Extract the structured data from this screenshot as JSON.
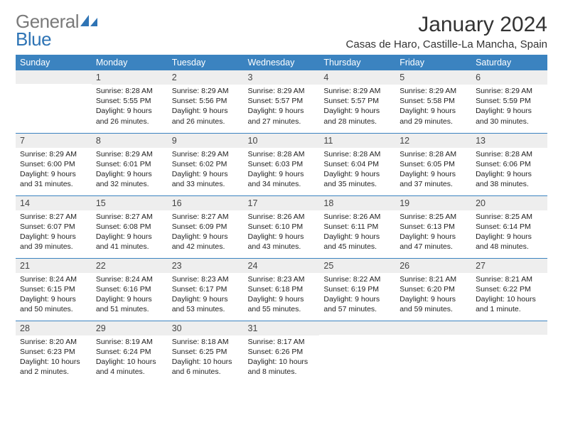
{
  "brand": {
    "grey": "General",
    "blue": "Blue"
  },
  "title": "January 2024",
  "location": "Casas de Haro, Castille-La Mancha, Spain",
  "colors": {
    "header_bg": "#3b83c0",
    "header_fg": "#ffffff",
    "daynum_bg": "#eeeeee",
    "row_border": "#3b83c0",
    "logo_grey": "#7a7a7a",
    "logo_blue": "#2f74b5",
    "text": "#333333",
    "background": "#ffffff"
  },
  "typography": {
    "month_title_fontsize": 30,
    "location_fontsize": 15,
    "dayheader_fontsize": 12.5,
    "daynum_fontsize": 12.5,
    "cell_fontsize": 10.5,
    "logo_fontsize": 26
  },
  "day_headers": [
    "Sunday",
    "Monday",
    "Tuesday",
    "Wednesday",
    "Thursday",
    "Friday",
    "Saturday"
  ],
  "weeks": [
    [
      {
        "n": "",
        "sr": "",
        "ss": "",
        "dl": ""
      },
      {
        "n": "1",
        "sr": "Sunrise: 8:28 AM",
        "ss": "Sunset: 5:55 PM",
        "dl": "Daylight: 9 hours and 26 minutes."
      },
      {
        "n": "2",
        "sr": "Sunrise: 8:29 AM",
        "ss": "Sunset: 5:56 PM",
        "dl": "Daylight: 9 hours and 26 minutes."
      },
      {
        "n": "3",
        "sr": "Sunrise: 8:29 AM",
        "ss": "Sunset: 5:57 PM",
        "dl": "Daylight: 9 hours and 27 minutes."
      },
      {
        "n": "4",
        "sr": "Sunrise: 8:29 AM",
        "ss": "Sunset: 5:57 PM",
        "dl": "Daylight: 9 hours and 28 minutes."
      },
      {
        "n": "5",
        "sr": "Sunrise: 8:29 AM",
        "ss": "Sunset: 5:58 PM",
        "dl": "Daylight: 9 hours and 29 minutes."
      },
      {
        "n": "6",
        "sr": "Sunrise: 8:29 AM",
        "ss": "Sunset: 5:59 PM",
        "dl": "Daylight: 9 hours and 30 minutes."
      }
    ],
    [
      {
        "n": "7",
        "sr": "Sunrise: 8:29 AM",
        "ss": "Sunset: 6:00 PM",
        "dl": "Daylight: 9 hours and 31 minutes."
      },
      {
        "n": "8",
        "sr": "Sunrise: 8:29 AM",
        "ss": "Sunset: 6:01 PM",
        "dl": "Daylight: 9 hours and 32 minutes."
      },
      {
        "n": "9",
        "sr": "Sunrise: 8:29 AM",
        "ss": "Sunset: 6:02 PM",
        "dl": "Daylight: 9 hours and 33 minutes."
      },
      {
        "n": "10",
        "sr": "Sunrise: 8:28 AM",
        "ss": "Sunset: 6:03 PM",
        "dl": "Daylight: 9 hours and 34 minutes."
      },
      {
        "n": "11",
        "sr": "Sunrise: 8:28 AM",
        "ss": "Sunset: 6:04 PM",
        "dl": "Daylight: 9 hours and 35 minutes."
      },
      {
        "n": "12",
        "sr": "Sunrise: 8:28 AM",
        "ss": "Sunset: 6:05 PM",
        "dl": "Daylight: 9 hours and 37 minutes."
      },
      {
        "n": "13",
        "sr": "Sunrise: 8:28 AM",
        "ss": "Sunset: 6:06 PM",
        "dl": "Daylight: 9 hours and 38 minutes."
      }
    ],
    [
      {
        "n": "14",
        "sr": "Sunrise: 8:27 AM",
        "ss": "Sunset: 6:07 PM",
        "dl": "Daylight: 9 hours and 39 minutes."
      },
      {
        "n": "15",
        "sr": "Sunrise: 8:27 AM",
        "ss": "Sunset: 6:08 PM",
        "dl": "Daylight: 9 hours and 41 minutes."
      },
      {
        "n": "16",
        "sr": "Sunrise: 8:27 AM",
        "ss": "Sunset: 6:09 PM",
        "dl": "Daylight: 9 hours and 42 minutes."
      },
      {
        "n": "17",
        "sr": "Sunrise: 8:26 AM",
        "ss": "Sunset: 6:10 PM",
        "dl": "Daylight: 9 hours and 43 minutes."
      },
      {
        "n": "18",
        "sr": "Sunrise: 8:26 AM",
        "ss": "Sunset: 6:11 PM",
        "dl": "Daylight: 9 hours and 45 minutes."
      },
      {
        "n": "19",
        "sr": "Sunrise: 8:25 AM",
        "ss": "Sunset: 6:13 PM",
        "dl": "Daylight: 9 hours and 47 minutes."
      },
      {
        "n": "20",
        "sr": "Sunrise: 8:25 AM",
        "ss": "Sunset: 6:14 PM",
        "dl": "Daylight: 9 hours and 48 minutes."
      }
    ],
    [
      {
        "n": "21",
        "sr": "Sunrise: 8:24 AM",
        "ss": "Sunset: 6:15 PM",
        "dl": "Daylight: 9 hours and 50 minutes."
      },
      {
        "n": "22",
        "sr": "Sunrise: 8:24 AM",
        "ss": "Sunset: 6:16 PM",
        "dl": "Daylight: 9 hours and 51 minutes."
      },
      {
        "n": "23",
        "sr": "Sunrise: 8:23 AM",
        "ss": "Sunset: 6:17 PM",
        "dl": "Daylight: 9 hours and 53 minutes."
      },
      {
        "n": "24",
        "sr": "Sunrise: 8:23 AM",
        "ss": "Sunset: 6:18 PM",
        "dl": "Daylight: 9 hours and 55 minutes."
      },
      {
        "n": "25",
        "sr": "Sunrise: 8:22 AM",
        "ss": "Sunset: 6:19 PM",
        "dl": "Daylight: 9 hours and 57 minutes."
      },
      {
        "n": "26",
        "sr": "Sunrise: 8:21 AM",
        "ss": "Sunset: 6:20 PM",
        "dl": "Daylight: 9 hours and 59 minutes."
      },
      {
        "n": "27",
        "sr": "Sunrise: 8:21 AM",
        "ss": "Sunset: 6:22 PM",
        "dl": "Daylight: 10 hours and 1 minute."
      }
    ],
    [
      {
        "n": "28",
        "sr": "Sunrise: 8:20 AM",
        "ss": "Sunset: 6:23 PM",
        "dl": "Daylight: 10 hours and 2 minutes."
      },
      {
        "n": "29",
        "sr": "Sunrise: 8:19 AM",
        "ss": "Sunset: 6:24 PM",
        "dl": "Daylight: 10 hours and 4 minutes."
      },
      {
        "n": "30",
        "sr": "Sunrise: 8:18 AM",
        "ss": "Sunset: 6:25 PM",
        "dl": "Daylight: 10 hours and 6 minutes."
      },
      {
        "n": "31",
        "sr": "Sunrise: 8:17 AM",
        "ss": "Sunset: 6:26 PM",
        "dl": "Daylight: 10 hours and 8 minutes."
      },
      {
        "n": "",
        "sr": "",
        "ss": "",
        "dl": ""
      },
      {
        "n": "",
        "sr": "",
        "ss": "",
        "dl": ""
      },
      {
        "n": "",
        "sr": "",
        "ss": "",
        "dl": ""
      }
    ]
  ]
}
